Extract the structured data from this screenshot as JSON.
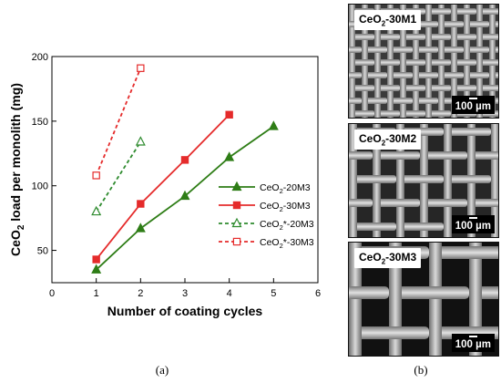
{
  "chart_data": {
    "type": "line",
    "xlabel": "Number of coating cycles",
    "ylabel_main": "CeO",
    "ylabel_sub": "2",
    "ylabel_rest": " load per monolith (mg)",
    "xlim": [
      0,
      6
    ],
    "ylim": [
      25,
      200
    ],
    "xticks": [
      0,
      1,
      2,
      3,
      4,
      5,
      6
    ],
    "yticks": [
      50,
      100,
      150,
      200
    ],
    "grid": false,
    "legend_position": "right-middle",
    "series": [
      {
        "name": "CeO2-20M3",
        "name_main": "CeO",
        "name_sub": "2",
        "name_rest": "-20M3",
        "color": "#2e7d16",
        "dash": "solid",
        "marker": "triangle-filled",
        "x": [
          1,
          2,
          3,
          4,
          5
        ],
        "values": [
          35,
          67,
          92,
          122,
          146
        ]
      },
      {
        "name": "CeO2-30M3",
        "name_main": "CeO",
        "name_sub": "2",
        "name_rest": "-30M3",
        "color": "#e52b2b",
        "dash": "solid",
        "marker": "square-filled",
        "x": [
          1,
          2,
          3,
          4
        ],
        "values": [
          43,
          86,
          120,
          155
        ]
      },
      {
        "name": "CeO2*-20M3",
        "name_main": "CeO",
        "name_sub": "2",
        "name_rest": "*-20M3",
        "color": "#2e8b2e",
        "dash": "dashed",
        "marker": "triangle-open",
        "x": [
          1,
          2
        ],
        "values": [
          80,
          134
        ]
      },
      {
        "name": "CeO2*-30M3",
        "name_main": "CeO",
        "name_sub": "2",
        "name_rest": "*-30M3",
        "color": "#e52b2b",
        "dash": "dashed",
        "marker": "square-open",
        "x": [
          1,
          2
        ],
        "values": [
          108,
          191
        ]
      }
    ]
  },
  "captions": {
    "a": "(a)",
    "b": "(b)"
  },
  "sem_panels": [
    {
      "label_main": "CeO",
      "label_sub": "2",
      "label_rest": "-30M1",
      "scale": "100 µm",
      "style": "dense"
    },
    {
      "label_main": "CeO",
      "label_sub": "2",
      "label_rest": "-30M2",
      "scale": "100 µm",
      "style": "medium"
    },
    {
      "label_main": "CeO",
      "label_sub": "2",
      "label_rest": "-30M3",
      "scale": "100 µm",
      "style": "open"
    }
  ]
}
